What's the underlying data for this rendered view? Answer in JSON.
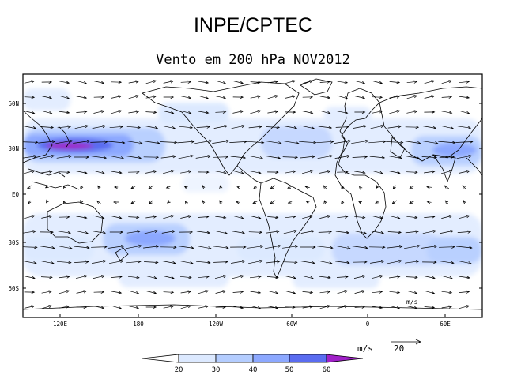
{
  "title": "INPE/CPTEC",
  "subtitle": "Vento em 200 hPa NOV2012",
  "map": {
    "lat_ticks": [
      "60N",
      "30N",
      "EQ",
      "30S",
      "60S"
    ],
    "lon_ticks": [
      "120E",
      "180",
      "120W",
      "60W",
      "0",
      "60E"
    ],
    "inset_unit": "m/s"
  },
  "legend": {
    "unit": "m/s",
    "reference_vector": "20",
    "breaks": [
      "20",
      "30",
      "40",
      "50",
      "60"
    ],
    "colors": [
      "#ffffff",
      "#dce9ff",
      "#b4cdff",
      "#8ca8ff",
      "#5a6cf0",
      "#a020c8"
    ]
  }
}
